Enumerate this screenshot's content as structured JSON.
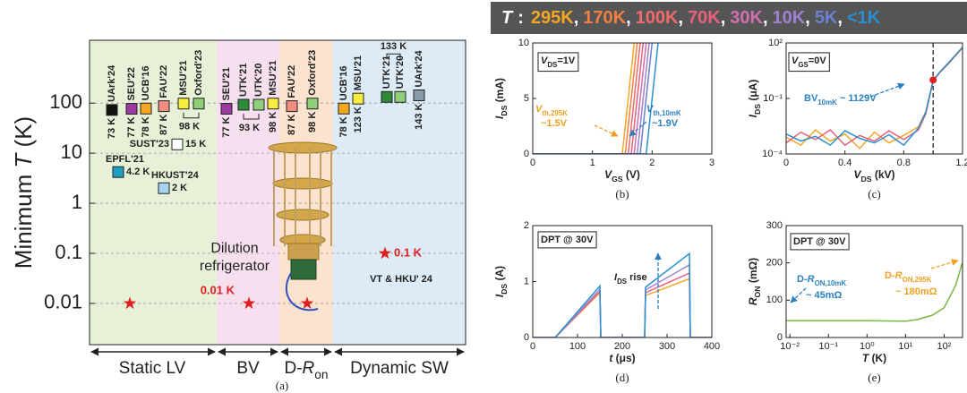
{
  "legend": {
    "symbol": "T",
    "colon": ":",
    "separator": ",",
    "items": [
      {
        "name": "295K",
        "color": "#f5a623"
      },
      {
        "name": "170K",
        "color": "#f38040"
      },
      {
        "name": "100K",
        "color": "#f06a6a"
      },
      {
        "name": "70K",
        "color": "#e8607a"
      },
      {
        "name": "30K",
        "color": "#d070b0"
      },
      {
        "name": "10K",
        "color": "#a080d0"
      },
      {
        "name": "5K",
        "color": "#6a80d0"
      },
      {
        "name": "<1K",
        "color": "#2a8fd0"
      }
    ]
  },
  "chart_data": [
    {
      "type": "scatter",
      "ylabel": [
        "Minimum ",
        {
          "i": "T"
        },
        " (K)"
      ],
      "ylog": true,
      "ylim": [
        0.0015,
        1800
      ],
      "yticks": [
        0.01,
        0.1,
        1,
        10,
        100
      ],
      "grid": true,
      "regions": [
        "Static LV",
        "BV",
        [
          "D-",
          {
            "i": "R"
          },
          {
            "sub": "on"
          }
        ],
        "Dynamic SW"
      ],
      "points": [
        {
          "name": "UArk'24",
          "label": "73 K",
          "value": 73,
          "color": "#111111"
        },
        {
          "name": "SEU'22",
          "label": "77 K",
          "value": 77,
          "color": "#9b3aa0"
        },
        {
          "name": "UCB'16",
          "label": "78 K",
          "value": 78,
          "color": "#f5a623"
        },
        {
          "name": "FAU'22",
          "label": "87 K",
          "value": 87,
          "color": "#f08c80"
        },
        {
          "name": "MSU'21",
          "label": "98 K",
          "value": 98,
          "color": "#f8ec3c"
        },
        {
          "name": "Oxford'23",
          "value": 98,
          "color": "#8fcf7a"
        },
        {
          "name": "SUST'23",
          "label": "15 K",
          "value": 15,
          "color": "#ffffff"
        },
        {
          "name": "EPFL'21",
          "label": "4.2 K",
          "value": 4.2,
          "color": "#1f9fc0"
        },
        {
          "name": "HKUST'24",
          "label": "2 K",
          "value": 2,
          "color": "#a6d4ef"
        },
        {
          "name": "SEU'21",
          "label": "77 K",
          "value": 77,
          "color": "#9b3aa0"
        },
        {
          "name": "UTK'21",
          "label": "93 K",
          "value": 93,
          "color": "#2e8b3a"
        },
        {
          "name": "UTK'20",
          "value": 93,
          "color": "#8fcf7a"
        },
        {
          "name": "MSU'21",
          "label": "98 K",
          "value": 98,
          "color": "#f8ec3c"
        },
        {
          "name": "FAU'22",
          "label": "87 K",
          "value": 87,
          "color": "#f08c80"
        },
        {
          "name": "Oxford'23",
          "label": "98 K",
          "value": 98,
          "color": "#8fcf7a"
        },
        {
          "name": "UCB'16",
          "label": "78 K",
          "value": 78,
          "color": "#f5a623"
        },
        {
          "name": "MSU'21",
          "label": "123 K",
          "value": 123,
          "color": "#f8ec3c"
        },
        {
          "name": "UTK'21",
          "label": "133 K",
          "value": 133,
          "color": "#2e8b3a"
        },
        {
          "name": "UTK'20",
          "value": 133,
          "color": "#8fcf7a"
        },
        {
          "name": "UArk'24",
          "label": "143 K",
          "value": 143,
          "color": "#8a9ba8"
        }
      ],
      "stars": [
        {
          "value": 0.01
        },
        {
          "value": 0.01,
          "label": "0.01 K"
        },
        {
          "value": 0.01
        },
        {
          "value": 0.1,
          "label": "0.1 K"
        }
      ],
      "annotations": [
        "Dilution",
        "refrigerator",
        "VT & HKU' 24"
      ],
      "panel": "(a)"
    },
    {
      "type": "line",
      "ylabel": [
        {
          "i": "I"
        },
        {
          "sub": "DS"
        },
        " (mA)"
      ],
      "xlabel": [
        {
          "i": "V"
        },
        {
          "sub": "GS"
        },
        " (V)"
      ],
      "xlim": [
        0,
        3
      ],
      "xticks": [
        0,
        1,
        2,
        3
      ],
      "ylim": [
        0,
        10
      ],
      "yticks": [
        0,
        5,
        10
      ],
      "series": [
        {
          "color": "#f5a623",
          "x": [
            0,
            1.5,
            1.7
          ],
          "values": [
            0,
            0,
            10
          ]
        },
        {
          "color": "#f38040",
          "x": [
            0,
            1.55,
            1.75
          ],
          "values": [
            0,
            0,
            10
          ]
        },
        {
          "color": "#f06a6a",
          "x": [
            0,
            1.6,
            1.8
          ],
          "values": [
            0,
            0,
            10
          ]
        },
        {
          "color": "#e8607a",
          "x": [
            0,
            1.65,
            1.85
          ],
          "values": [
            0,
            0,
            10
          ]
        },
        {
          "color": "#d070b0",
          "x": [
            0,
            1.7,
            1.9
          ],
          "values": [
            0,
            0,
            10
          ]
        },
        {
          "color": "#a080d0",
          "x": [
            0,
            1.75,
            1.95
          ],
          "values": [
            0,
            0,
            10
          ]
        },
        {
          "color": "#6a80d0",
          "x": [
            0,
            1.8,
            2.0
          ],
          "values": [
            0,
            0,
            10
          ]
        },
        {
          "color": "#2a8fd0",
          "x": [
            0,
            1.9,
            2.1
          ],
          "values": [
            0,
            0,
            10
          ]
        }
      ],
      "annotations": [
        [
          {
            "i": "V"
          },
          {
            "sub": "DS"
          },
          "=1V"
        ],
        [
          {
            "i": "V"
          },
          {
            "sub": "th,295K"
          }
        ],
        "~1.5V",
        [
          {
            "i": "V"
          },
          {
            "sub": "th,10mK"
          }
        ],
        "~1.9V"
      ],
      "panel": "(b)"
    },
    {
      "type": "line",
      "ylabel": [
        {
          "i": "I"
        },
        {
          "sub": "DS"
        },
        " (μA)"
      ],
      "xlabel": [
        {
          "i": "V"
        },
        {
          "sub": "DS"
        },
        " (kV)"
      ],
      "xlim": [
        0,
        1.2
      ],
      "xticks": [
        0,
        0.4,
        0.8,
        1.2
      ],
      "ylog": true,
      "ylim": [
        0.0001,
        100
      ],
      "yticks": [
        {
          "value": 0.0001,
          "label": "10⁻⁴"
        },
        {
          "value": 0.1,
          "label": "10⁻¹"
        },
        {
          "value": 100,
          "label": "10²"
        }
      ],
      "series": [
        {
          "color": "#f5a623",
          "x": [
            0,
            0.1,
            0.2,
            0.3,
            0.4,
            0.5,
            0.6,
            0.7,
            0.8,
            0.9,
            0.95,
            1.0,
            1.05,
            1.1,
            1.2
          ],
          "values": [
            0.0008,
            0.0003,
            0.002,
            0.0005,
            0.0012,
            0.0002,
            0.0015,
            0.0004,
            0.001,
            0.003,
            0.02,
            1,
            3,
            8,
            60
          ]
        },
        {
          "color": "#e8607a",
          "x": [
            0,
            0.1,
            0.2,
            0.3,
            0.4,
            0.5,
            0.6,
            0.7,
            0.8,
            0.9,
            0.95,
            1.0,
            1.05,
            1.1,
            1.2
          ],
          "values": [
            0.0004,
            0.0015,
            0.0006,
            0.002,
            0.0003,
            0.001,
            0.0005,
            0.0018,
            0.0006,
            0.002,
            0.015,
            0.9,
            2.8,
            7,
            55
          ]
        },
        {
          "color": "#2a8fd0",
          "x": [
            0,
            0.1,
            0.2,
            0.3,
            0.4,
            0.5,
            0.6,
            0.7,
            0.8,
            0.9,
            0.95,
            1.0,
            1.05,
            1.1,
            1.2
          ],
          "values": [
            0.0012,
            0.0005,
            0.0009,
            0.0003,
            0.0018,
            0.0007,
            0.0004,
            0.0011,
            0.0003,
            0.0025,
            0.018,
            0.95,
            2.9,
            7.5,
            58
          ]
        }
      ],
      "marker": {
        "x": 1.0,
        "value": 1
      },
      "annotations": [
        [
          {
            "i": "V"
          },
          {
            "sub": "GS"
          },
          "=0V"
        ],
        [
          "BV",
          {
            "sub": "10mK"
          },
          " ~ 1129V"
        ]
      ],
      "panel": "(c)"
    },
    {
      "type": "line",
      "ylabel": [
        {
          "i": "I"
        },
        {
          "sub": "DS"
        },
        " (A)"
      ],
      "xlabel": [
        {
          "i": "t"
        },
        " (μs)"
      ],
      "xlim": [
        0,
        400
      ],
      "xticks": [
        0,
        100,
        200,
        300,
        400
      ],
      "ylim": [
        0,
        2
      ],
      "yticks": [
        0,
        1,
        2
      ],
      "series": [
        {
          "color": "#f5a623",
          "x": [
            0,
            50,
            150,
            152,
            250,
            252,
            350,
            352,
            400
          ],
          "values": [
            0,
            0,
            0.8,
            0,
            0,
            0.75,
            1.05,
            0,
            0
          ]
        },
        {
          "color": "#e8607a",
          "x": [
            0,
            50,
            150,
            152,
            250,
            252,
            350,
            352,
            400
          ],
          "values": [
            0,
            0,
            0.82,
            0,
            0,
            0.8,
            1.15,
            0,
            0
          ]
        },
        {
          "color": "#a080d0",
          "x": [
            0,
            50,
            150,
            152,
            250,
            252,
            350,
            352,
            400
          ],
          "values": [
            0,
            0,
            0.86,
            0,
            0,
            0.85,
            1.3,
            0,
            0
          ]
        },
        {
          "color": "#2a8fd0",
          "x": [
            0,
            50,
            150,
            152,
            250,
            252,
            350,
            352,
            400
          ],
          "values": [
            0,
            0,
            0.92,
            0,
            0,
            0.9,
            1.5,
            0,
            0
          ]
        }
      ],
      "annotations": [
        "DPT @ 30V",
        [
          {
            "i": "I"
          },
          {
            "sub": "DS"
          },
          " rise"
        ]
      ],
      "panel": "(d)"
    },
    {
      "type": "line",
      "ylabel": [
        {
          "i": "R"
        },
        {
          "sub": "ON"
        },
        " (mΩ)"
      ],
      "xlabel": [
        {
          "i": "T"
        },
        " (K)"
      ],
      "xlog": true,
      "xlim": [
        0.008,
        300
      ],
      "xticks": [
        {
          "value": 0.01,
          "label": "10⁻²"
        },
        {
          "value": 0.1,
          "label": "10⁻¹"
        },
        {
          "value": 1,
          "label": "10⁰"
        },
        {
          "value": 10,
          "label": "10¹"
        },
        {
          "value": 100,
          "label": "10²"
        }
      ],
      "ylim": [
        0,
        300
      ],
      "yticks": [
        0,
        100,
        200,
        300
      ],
      "series": [
        {
          "color": "#7ab648",
          "x": [
            0.008,
            0.01,
            0.1,
            1,
            10,
            20,
            50,
            100,
            200,
            295
          ],
          "values": [
            45,
            45,
            45,
            45,
            44,
            48,
            60,
            80,
            140,
            200
          ]
        }
      ],
      "annotations": [
        "DPT @ 30V",
        [
          "D-",
          {
            "i": "R"
          },
          {
            "sub": "ON,10mK"
          }
        ],
        "~ 45mΩ",
        [
          "D-",
          {
            "i": "R"
          },
          {
            "sub": "ON,295K"
          }
        ],
        "~ 180mΩ"
      ],
      "panel": "(e)"
    }
  ]
}
